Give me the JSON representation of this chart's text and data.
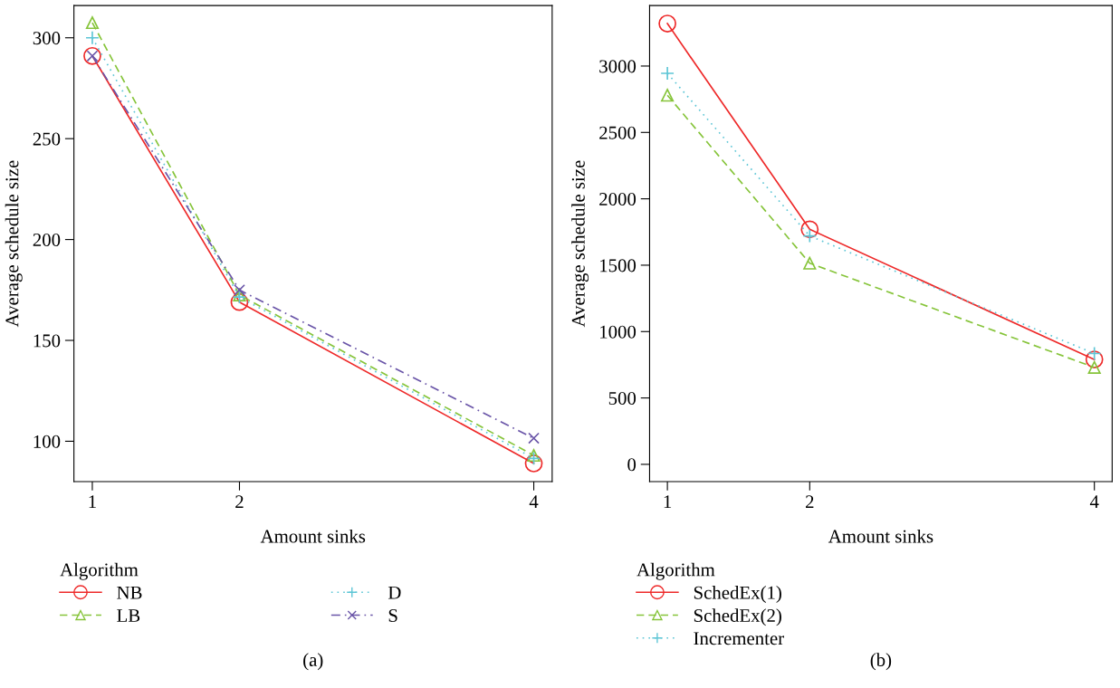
{
  "chart_data": [
    {
      "type": "line",
      "x": [
        1,
        2,
        4
      ],
      "xlabel": "Amount sinks",
      "ylabel": "Average schedule size",
      "legend_title": "Algorithm",
      "legend": "bottom",
      "xlim": [
        0.875,
        4.125
      ],
      "xticks": [
        1,
        2,
        4
      ],
      "ylim": [
        80,
        316
      ],
      "yticks": [
        100,
        150,
        200,
        250,
        300
      ],
      "grid": false,
      "series": [
        {
          "name": "NB",
          "color": "#ee2a2a",
          "values": [
            291,
            169,
            89
          ],
          "marker": "circle",
          "line_style": "solid"
        },
        {
          "name": "LB",
          "color": "#86c43a",
          "values": [
            307.5,
            172.5,
            93
          ],
          "marker": "triangle",
          "line_style": "dashed"
        },
        {
          "name": "D",
          "color": "#5ec6d6",
          "values": [
            300,
            171.5,
            91.5
          ],
          "marker": "cross",
          "line_style": "dotted"
        },
        {
          "name": "S",
          "color": "#6a55a8",
          "values": [
            291,
            175,
            101.5
          ],
          "marker": "x",
          "line_style": "dashdot"
        }
      ],
      "annotations": [
        "(a)"
      ]
    },
    {
      "type": "line",
      "x": [
        1,
        2,
        4
      ],
      "xlabel": "Amount sinks",
      "ylabel": "Average schedule size",
      "legend_title": "Algorithm",
      "legend": "bottom",
      "xlim": [
        0.875,
        4.125
      ],
      "xticks": [
        1,
        2,
        4
      ],
      "ylim": [
        -130,
        3456
      ],
      "yticks": [
        0,
        500,
        1000,
        1500,
        2000,
        2500,
        3000
      ],
      "grid": false,
      "series": [
        {
          "name": "SchedEx(1)",
          "color": "#ee2a2a",
          "values": [
            3320,
            1770,
            790
          ],
          "marker": "circle",
          "line_style": "solid"
        },
        {
          "name": "SchedEx(2)",
          "color": "#86c43a",
          "values": [
            2780,
            1515,
            730
          ],
          "marker": "triangle",
          "line_style": "dashed"
        },
        {
          "name": "Incrementer",
          "color": "#5ec6d6",
          "values": [
            2945,
            1720,
            835
          ],
          "marker": "cross",
          "line_style": "dotted"
        }
      ],
      "annotations": [
        "(b)"
      ]
    }
  ]
}
